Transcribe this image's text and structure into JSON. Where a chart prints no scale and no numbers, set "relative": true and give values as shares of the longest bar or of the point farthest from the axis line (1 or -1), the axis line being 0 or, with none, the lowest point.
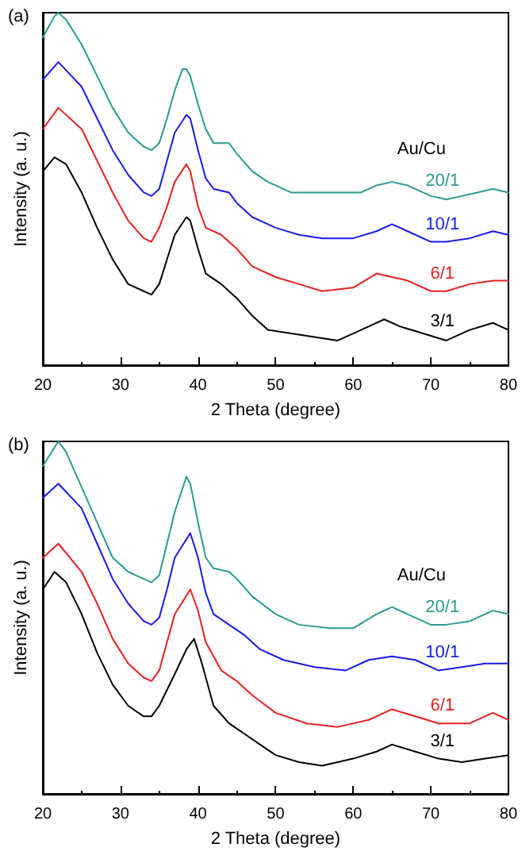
{
  "chart_data": [
    {
      "type": "line",
      "title": "(a)",
      "xlabel": "2 Theta (degree)",
      "ylabel": "Intensity (a. u.)",
      "legend_title": "Au/Cu",
      "relative": true,
      "xlim": [
        20,
        80
      ],
      "xticks": [
        20,
        30,
        40,
        50,
        60,
        70,
        80
      ],
      "grid": false,
      "marker": "none",
      "line_style": "solid",
      "series": [
        {
          "name": "20/1",
          "color": "#2a9a8f",
          "x": [
            20,
            21.5,
            22,
            23,
            25,
            27,
            29,
            31,
            33,
            34,
            35,
            36,
            37,
            38,
            38.5,
            39,
            40,
            41,
            42,
            43,
            44,
            45,
            47,
            49,
            52,
            55,
            58,
            61,
            63,
            65,
            67,
            70,
            72,
            74,
            76,
            78,
            80
          ],
          "values": [
            0.93,
            0.99,
            1.0,
            0.98,
            0.91,
            0.82,
            0.73,
            0.66,
            0.62,
            0.61,
            0.63,
            0.7,
            0.78,
            0.84,
            0.84,
            0.82,
            0.74,
            0.67,
            0.63,
            0.63,
            0.63,
            0.6,
            0.55,
            0.52,
            0.49,
            0.49,
            0.49,
            0.49,
            0.51,
            0.52,
            0.51,
            0.48,
            0.47,
            0.48,
            0.49,
            0.5,
            0.49
          ]
        },
        {
          "name": "10/1",
          "color": "#1a1ae6",
          "x": [
            20,
            22,
            25,
            27,
            29,
            31,
            33,
            34,
            35,
            36,
            37,
            38.5,
            39,
            40,
            41,
            42,
            44,
            45,
            47,
            50,
            53,
            56,
            60,
            63,
            65,
            67,
            70,
            72,
            75,
            78,
            80
          ],
          "values": [
            0.81,
            0.86,
            0.79,
            0.7,
            0.61,
            0.54,
            0.49,
            0.48,
            0.5,
            0.58,
            0.66,
            0.71,
            0.7,
            0.61,
            0.53,
            0.5,
            0.49,
            0.46,
            0.42,
            0.39,
            0.37,
            0.36,
            0.36,
            0.38,
            0.4,
            0.38,
            0.35,
            0.35,
            0.36,
            0.38,
            0.37
          ]
        },
        {
          "name": "6/1",
          "color": "#e62020",
          "x": [
            20,
            22,
            25,
            27,
            29,
            31,
            33,
            34,
            35,
            36,
            37,
            38.5,
            39,
            40,
            41,
            43,
            45,
            47,
            50,
            53,
            56,
            60,
            63,
            65,
            67,
            70,
            72,
            75,
            78,
            80
          ],
          "values": [
            0.67,
            0.73,
            0.67,
            0.58,
            0.49,
            0.41,
            0.36,
            0.35,
            0.39,
            0.45,
            0.52,
            0.57,
            0.55,
            0.45,
            0.39,
            0.37,
            0.33,
            0.28,
            0.25,
            0.23,
            0.21,
            0.22,
            0.26,
            0.25,
            0.24,
            0.21,
            0.21,
            0.23,
            0.24,
            0.24
          ]
        },
        {
          "name": "3/1",
          "color": "#000000",
          "x": [
            20,
            21.5,
            23,
            25,
            27,
            29,
            31,
            33,
            34,
            35,
            36,
            37,
            38.5,
            39,
            40,
            41,
            43,
            45,
            47,
            49,
            52,
            55,
            58,
            61,
            64,
            66,
            69,
            72,
            75,
            78,
            80
          ],
          "values": [
            0.55,
            0.59,
            0.57,
            0.49,
            0.39,
            0.3,
            0.23,
            0.21,
            0.2,
            0.23,
            0.3,
            0.37,
            0.42,
            0.41,
            0.33,
            0.26,
            0.23,
            0.19,
            0.14,
            0.1,
            0.09,
            0.08,
            0.07,
            0.1,
            0.13,
            0.11,
            0.09,
            0.07,
            0.1,
            0.12,
            0.1
          ]
        }
      ]
    },
    {
      "type": "line",
      "title": "(b)",
      "xlabel": "2 Theta (degree)",
      "ylabel": "Intensity (a. u.)",
      "legend_title": "Au/Cu",
      "relative": true,
      "xlim": [
        20,
        80
      ],
      "xticks": [
        20,
        30,
        40,
        50,
        60,
        70,
        80
      ],
      "grid": false,
      "marker": "none",
      "line_style": "solid",
      "series": [
        {
          "name": "20/1",
          "color": "#2a9a8f",
          "x": [
            20,
            22,
            23,
            25,
            27,
            29,
            31,
            33,
            34,
            35,
            36,
            37,
            38.5,
            39,
            40,
            41,
            42,
            44,
            45,
            47,
            50,
            53,
            57,
            60,
            63,
            65,
            67,
            70,
            72,
            75,
            78,
            80
          ],
          "values": [
            0.93,
            1.0,
            0.97,
            0.87,
            0.77,
            0.67,
            0.63,
            0.61,
            0.6,
            0.62,
            0.71,
            0.8,
            0.9,
            0.88,
            0.77,
            0.67,
            0.64,
            0.63,
            0.61,
            0.56,
            0.51,
            0.48,
            0.47,
            0.47,
            0.51,
            0.53,
            0.51,
            0.48,
            0.48,
            0.49,
            0.52,
            0.51
          ]
        },
        {
          "name": "10/1",
          "color": "#1a1ae6",
          "x": [
            20,
            22,
            25,
            27,
            29,
            31,
            33,
            34,
            35,
            36,
            37,
            39,
            40,
            41,
            42,
            44,
            46,
            48,
            51,
            55,
            59,
            62,
            65,
            68,
            71,
            74,
            77,
            80
          ],
          "values": [
            0.84,
            0.88,
            0.81,
            0.71,
            0.61,
            0.54,
            0.49,
            0.48,
            0.5,
            0.58,
            0.67,
            0.74,
            0.67,
            0.57,
            0.51,
            0.48,
            0.45,
            0.41,
            0.38,
            0.36,
            0.35,
            0.38,
            0.39,
            0.38,
            0.35,
            0.36,
            0.37,
            0.37
          ]
        },
        {
          "name": "6/1",
          "color": "#e62020",
          "x": [
            20,
            22,
            25,
            27,
            29,
            31,
            33,
            34,
            35,
            36,
            37,
            39,
            40,
            41,
            43,
            45,
            47,
            50,
            54,
            58,
            62,
            65,
            68,
            71,
            75,
            78,
            80
          ],
          "values": [
            0.67,
            0.71,
            0.63,
            0.54,
            0.44,
            0.37,
            0.33,
            0.32,
            0.35,
            0.43,
            0.51,
            0.58,
            0.52,
            0.43,
            0.35,
            0.32,
            0.28,
            0.23,
            0.2,
            0.19,
            0.21,
            0.24,
            0.22,
            0.2,
            0.2,
            0.23,
            0.21
          ]
        },
        {
          "name": "3/1",
          "color": "#000000",
          "x": [
            20,
            21.5,
            23,
            25,
            27,
            29,
            31,
            33,
            34,
            35,
            37,
            38.5,
            39.5,
            40.5,
            42,
            44,
            46,
            48,
            50,
            53,
            56,
            60,
            63,
            65,
            68,
            71,
            74,
            77,
            80
          ],
          "values": [
            0.58,
            0.63,
            0.6,
            0.51,
            0.4,
            0.31,
            0.25,
            0.22,
            0.22,
            0.25,
            0.34,
            0.41,
            0.44,
            0.37,
            0.25,
            0.2,
            0.17,
            0.14,
            0.11,
            0.09,
            0.08,
            0.1,
            0.12,
            0.14,
            0.12,
            0.1,
            0.09,
            0.1,
            0.11
          ]
        }
      ]
    }
  ]
}
